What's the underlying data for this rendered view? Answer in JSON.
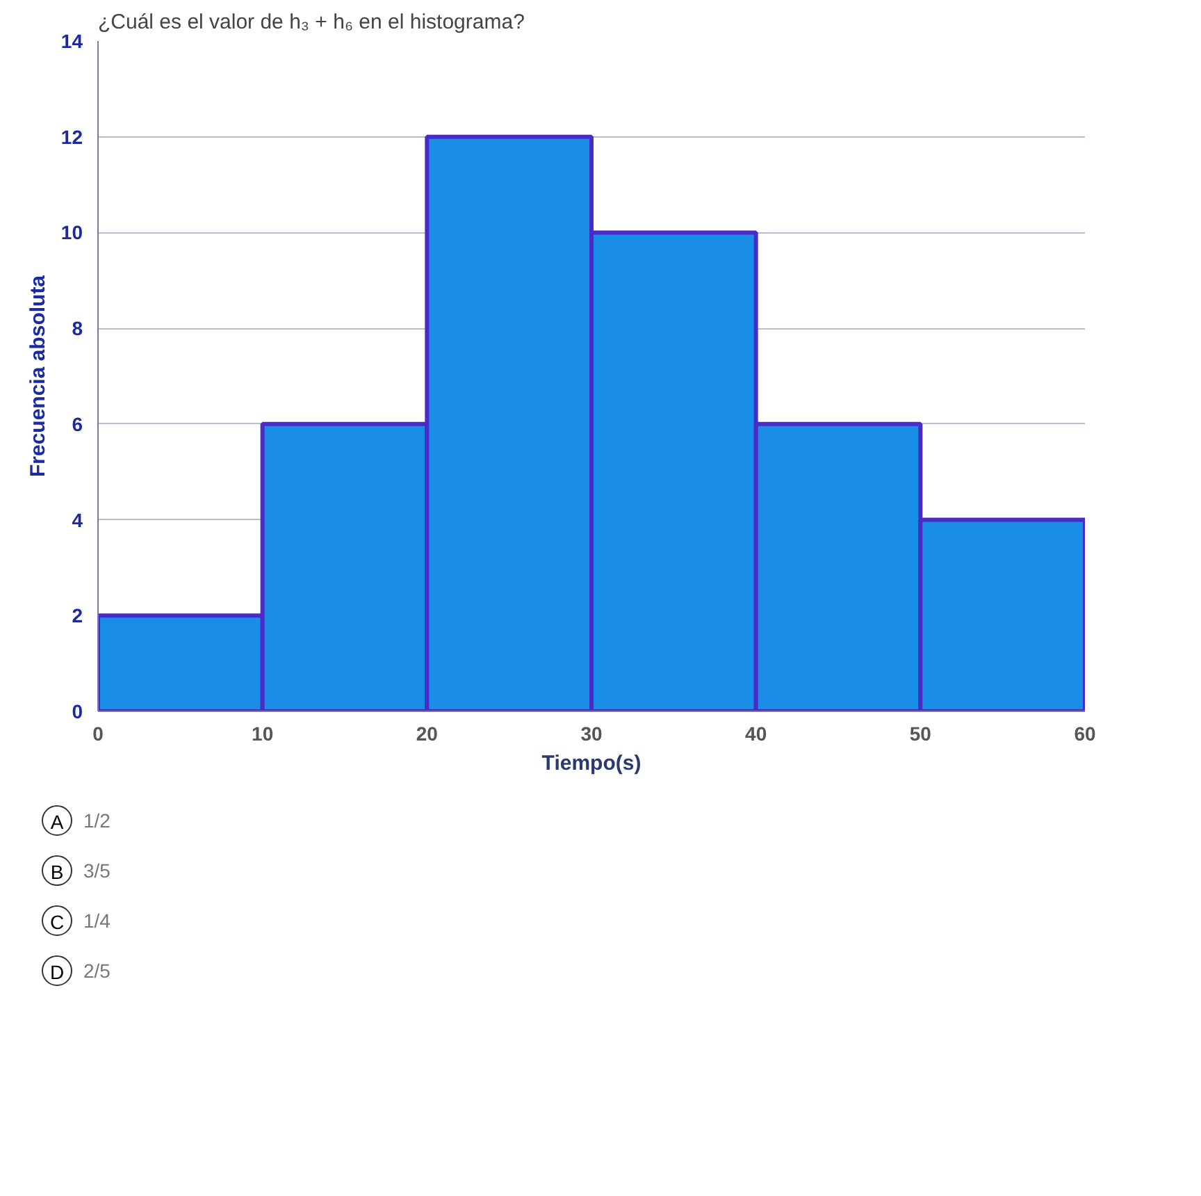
{
  "chart_data": {
    "type": "histogram",
    "title": "¿Cuál es el valor de h₃ + h₆ en el histograma?",
    "xlabel": "Tiempo(s)",
    "ylabel": "Frecuencia absoluta",
    "bins": [
      0,
      10,
      20,
      30,
      40,
      50,
      60
    ],
    "values": [
      2,
      6,
      12,
      10,
      6,
      4
    ],
    "color": "#1a8ee6",
    "xlim": [
      0,
      60
    ],
    "xticks": [
      0,
      10,
      20,
      30,
      40,
      50,
      60
    ],
    "ylim": [
      0,
      14
    ],
    "yticks": [
      0,
      2,
      4,
      6,
      8,
      10,
      12,
      14
    ],
    "grid": "y",
    "annotations": [
      "A 1/2",
      "B 3/5",
      "C 1/4",
      "D 2/5"
    ]
  }
}
